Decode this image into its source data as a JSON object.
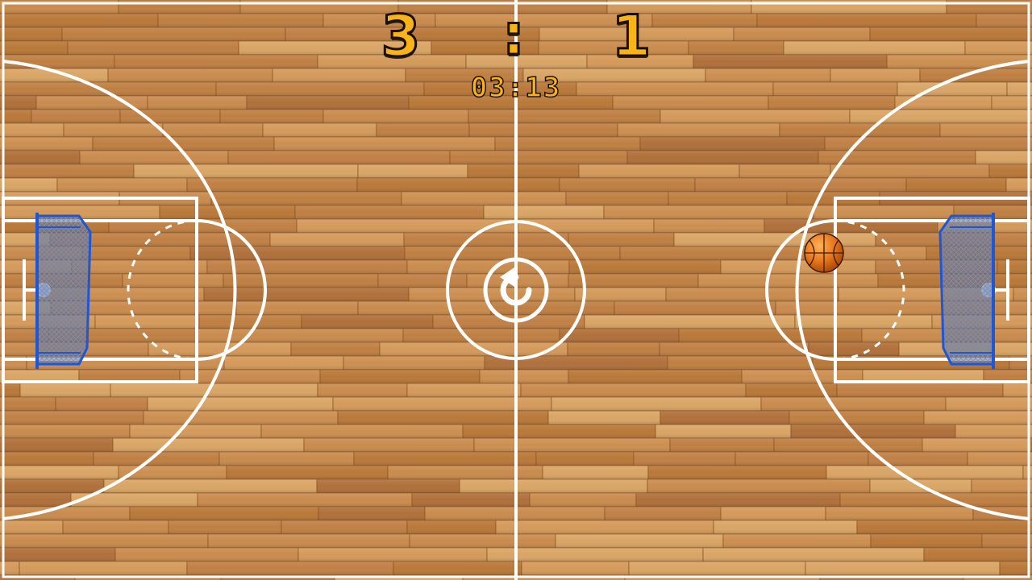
{
  "scoreboard": {
    "home_score": "3",
    "separator": ":",
    "away_score": "1",
    "timer": "03:13"
  },
  "controls": {
    "reset_icon": "rotate-ccw-icon"
  },
  "colors": {
    "floor": "#c88a4c",
    "lines": "#ffffff",
    "score_text": "#f7b318",
    "goal_frame": "#1e56d8",
    "ball": "#e8781c"
  }
}
